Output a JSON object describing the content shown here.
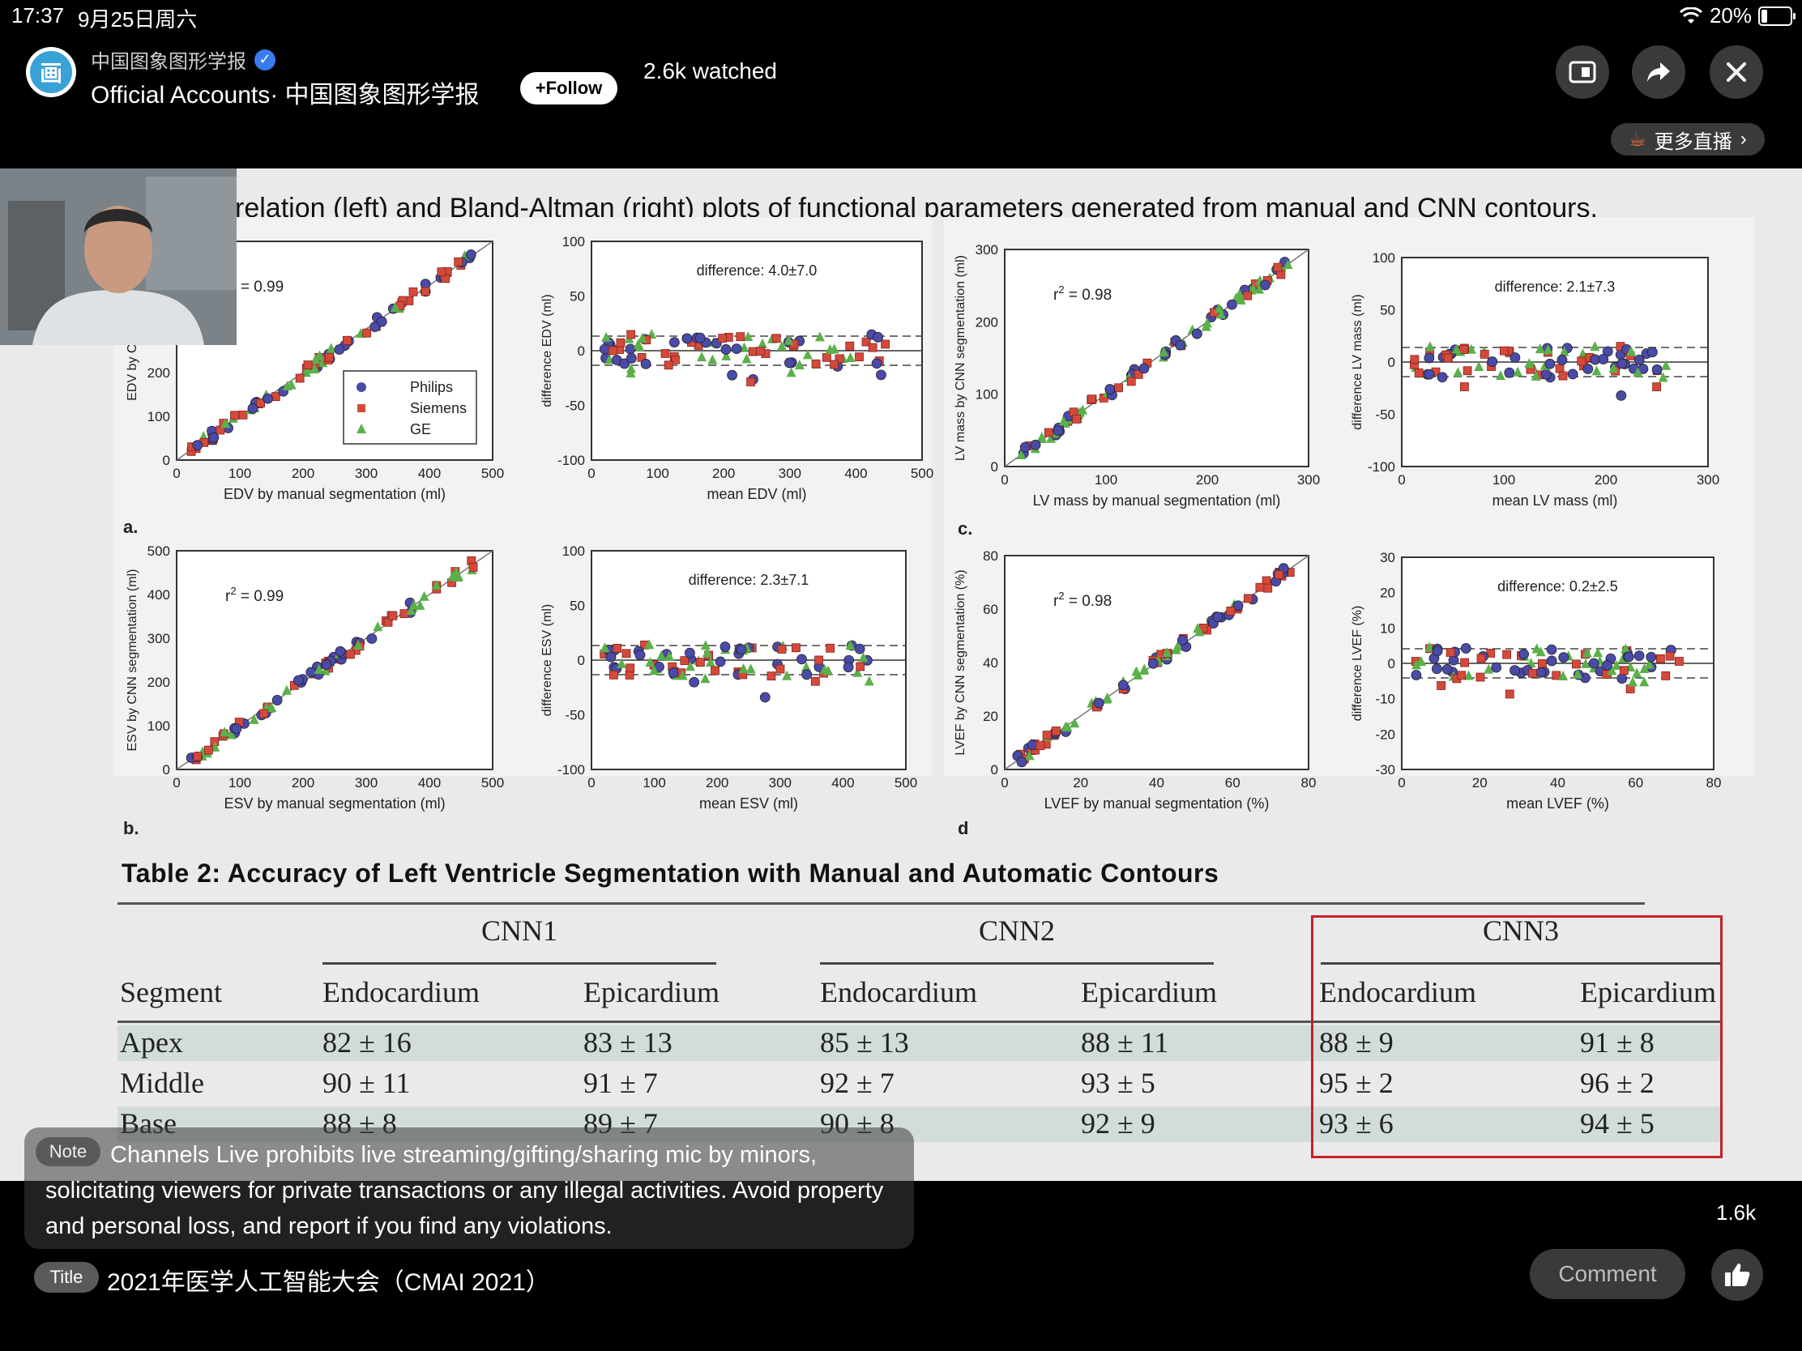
{
  "status_bar": {
    "time": "17:37",
    "date": "9月25日周六",
    "battery": "20%",
    "battery_level": 0.2
  },
  "header": {
    "account_name": "中国图象图形学报",
    "official_label": "Official Accounts· 中国图象图形学报",
    "follow_label": "+Follow",
    "watched": "2.6k watched",
    "more_live": "更多直播",
    "avatar_text": "画"
  },
  "slide": {
    "title": "relation (left) and Bland-Altman (right) plots of functional parameters generated from manual and CNN contours.",
    "panel_labels": [
      "a.",
      "b.",
      "c.",
      "d"
    ],
    "plots": [
      {
        "ylabel": "EDV by CNN seg",
        "xlabel": "EDV by manual segmentation (ml)",
        "r2": "= 0.99",
        "xticks": [
          "0",
          "100",
          "200",
          "300",
          "400",
          "500"
        ],
        "yticks": [
          "0",
          "100",
          "200"
        ]
      },
      {
        "ylabel": "difference EDV (ml)",
        "xlabel": "mean EDV (ml)",
        "diff": "difference: 4.0±7.0",
        "xticks": [
          "0",
          "100",
          "200",
          "300",
          "400",
          "500"
        ],
        "yticks": [
          "100",
          "50",
          "0",
          "-50",
          "-100"
        ]
      },
      {
        "ylabel": "LV mass by CNN segmentation (ml)",
        "xlabel": "LV mass by manual segmentation (ml)",
        "r2": "= 0.98",
        "xticks": [
          "0",
          "100",
          "200",
          "300"
        ],
        "yticks": [
          "300",
          "200",
          "100",
          "0"
        ]
      },
      {
        "ylabel": "difference LV mass (ml)",
        "xlabel": "mean LV mass (ml)",
        "diff": "difference: 2.1±7.3",
        "xticks": [
          "0",
          "100",
          "200",
          "300"
        ],
        "yticks": [
          "100",
          "50",
          "0",
          "-50",
          "-100"
        ]
      },
      {
        "ylabel": "ESV by CNN segmentation (ml)",
        "xlabel": "ESV by manual segmentation (ml)",
        "r2": "= 0.99",
        "xticks": [
          "0",
          "100",
          "200",
          "300",
          "400",
          "500"
        ],
        "yticks": [
          "500",
          "400",
          "300",
          "200",
          "100",
          "0"
        ]
      },
      {
        "ylabel": "difference ESV (ml)",
        "xlabel": "mean ESV (ml)",
        "diff": "difference: 2.3±7.1",
        "xticks": [
          "0",
          "100",
          "200",
          "300",
          "400",
          "500"
        ],
        "yticks": [
          "100",
          "50",
          "0",
          "-50",
          "-100"
        ]
      },
      {
        "ylabel": "LVEF by CNN segmentation (%)",
        "xlabel": "LVEF by manual segmentation (%)",
        "r2": "= 0.98",
        "xticks": [
          "0",
          "20",
          "40",
          "60",
          "80"
        ],
        "yticks": [
          "80",
          "60",
          "40",
          "20",
          "0"
        ]
      },
      {
        "ylabel": "difference LVEF (%)",
        "xlabel": "mean LVEF (%)",
        "diff": "difference: 0.2±2.5",
        "xticks": [
          "0",
          "20",
          "40",
          "60",
          "80"
        ],
        "yticks": [
          "30",
          "20",
          "10",
          "0",
          "-10",
          "-20",
          "-30"
        ]
      }
    ],
    "legend": [
      "Philips",
      "Siemens",
      "GE"
    ],
    "r2_prefix": "r",
    "r2_sup": "2",
    "colors": {
      "philips": "#4a4aa8",
      "siemens": "#d44a3a",
      "ge": "#5bb04a",
      "highlight": "#c8202a"
    },
    "table": {
      "title": "Table 2: Accuracy of Left Ventricle Segmentation with Manual and Automatic Contours",
      "groups": [
        "CNN1",
        "CNN2",
        "CNN3"
      ],
      "columns": [
        "Segment",
        "Endocardium",
        "Epicardium",
        "Endocardium",
        "Epicardium",
        "Endocardium",
        "Epicardium"
      ],
      "rows": [
        [
          "Apex",
          "82 ± 16",
          "83 ± 13",
          "85 ± 13",
          "88 ± 11",
          "88 ± 9",
          "91 ± 8"
        ],
        [
          "Middle",
          "90 ± 11",
          "91 ± 7",
          "92 ± 7",
          "93 ± 5",
          "95 ± 2",
          "96 ± 2"
        ],
        [
          "Base",
          "88 ± 8",
          "89 ± 7",
          "90 ± 8",
          "92 ± 9",
          "93 ± 6",
          "94 ± 5"
        ]
      ]
    }
  },
  "note": {
    "tag": "Note",
    "text": "Channels Live prohibits live streaming/gifting/sharing mic by minors, solicitating viewers for private transactions or any illegal activities. Avoid property and personal loss, and report if you find any violations."
  },
  "footer": {
    "title_tag": "Title",
    "title": "2021年医学人工智能大会（CMAI 2021）",
    "likes": "1.6k",
    "comment_label": "Comment"
  }
}
